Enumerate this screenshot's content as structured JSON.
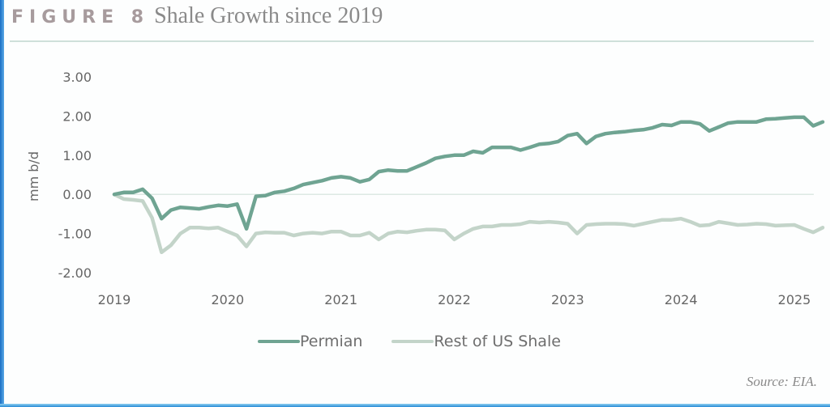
{
  "figure": {
    "label": "FIGURE 8",
    "title": "Shale Growth since 2019",
    "source": "Source: EIA."
  },
  "chart_data": {
    "type": "line",
    "title": "Shale Growth since 2019",
    "xlabel": "",
    "ylabel": "mm b/d",
    "ylim": [
      -2.0,
      3.0
    ],
    "yticks": [
      "3.00",
      "2.00",
      "1.00",
      "0.00",
      "-1.00",
      "-2.00"
    ],
    "ytick_values": [
      3,
      2,
      1,
      0,
      -1,
      -2
    ],
    "xticks": [
      "2019",
      "2020",
      "2021",
      "2022",
      "2023",
      "2024",
      "2025"
    ],
    "xtick_values": [
      2019,
      2020,
      2021,
      2022,
      2023,
      2024,
      2025
    ],
    "x_start": 2019.0,
    "x_step_months": 1,
    "grid": "zero-line only",
    "legend_position": "bottom-center",
    "colors": {
      "Permian": "#6fa492",
      "Rest of US Shale": "#c3d4c9",
      "zero_line": "#dde9e4"
    },
    "series": [
      {
        "name": "Permian",
        "values": [
          0.0,
          0.05,
          0.05,
          0.13,
          -0.1,
          -0.62,
          -0.4,
          -0.33,
          -0.35,
          -0.37,
          -0.32,
          -0.28,
          -0.3,
          -0.25,
          -0.88,
          -0.05,
          -0.03,
          0.05,
          0.08,
          0.15,
          0.25,
          0.3,
          0.35,
          0.42,
          0.45,
          0.42,
          0.32,
          0.38,
          0.58,
          0.62,
          0.6,
          0.6,
          0.7,
          0.8,
          0.92,
          0.97,
          1.0,
          1.0,
          1.1,
          1.06,
          1.2,
          1.2,
          1.2,
          1.13,
          1.2,
          1.28,
          1.3,
          1.35,
          1.5,
          1.55,
          1.3,
          1.48,
          1.55,
          1.58,
          1.6,
          1.63,
          1.65,
          1.7,
          1.78,
          1.76,
          1.85,
          1.85,
          1.8,
          1.62,
          1.72,
          1.82,
          1.85,
          1.85,
          1.85,
          1.92,
          1.93,
          1.95,
          1.97,
          1.97,
          1.75,
          1.85
        ]
      },
      {
        "name": "Rest of US Shale",
        "values": [
          0.0,
          -0.12,
          -0.14,
          -0.17,
          -0.6,
          -1.48,
          -1.3,
          -1.0,
          -0.85,
          -0.85,
          -0.87,
          -0.85,
          -0.95,
          -1.05,
          -1.33,
          -1.0,
          -0.97,
          -0.98,
          -0.98,
          -1.05,
          -1.0,
          -0.98,
          -1.0,
          -0.95,
          -0.95,
          -1.05,
          -1.05,
          -0.98,
          -1.15,
          -1.0,
          -0.95,
          -0.97,
          -0.93,
          -0.9,
          -0.9,
          -0.92,
          -1.15,
          -1.0,
          -0.88,
          -0.82,
          -0.82,
          -0.78,
          -0.78,
          -0.76,
          -0.7,
          -0.72,
          -0.7,
          -0.72,
          -0.75,
          -1.0,
          -0.78,
          -0.76,
          -0.75,
          -0.75,
          -0.76,
          -0.8,
          -0.75,
          -0.7,
          -0.65,
          -0.65,
          -0.62,
          -0.7,
          -0.8,
          -0.78,
          -0.7,
          -0.74,
          -0.78,
          -0.77,
          -0.75,
          -0.76,
          -0.8,
          -0.79,
          -0.78,
          -0.88,
          -0.97,
          -0.85
        ]
      }
    ]
  }
}
